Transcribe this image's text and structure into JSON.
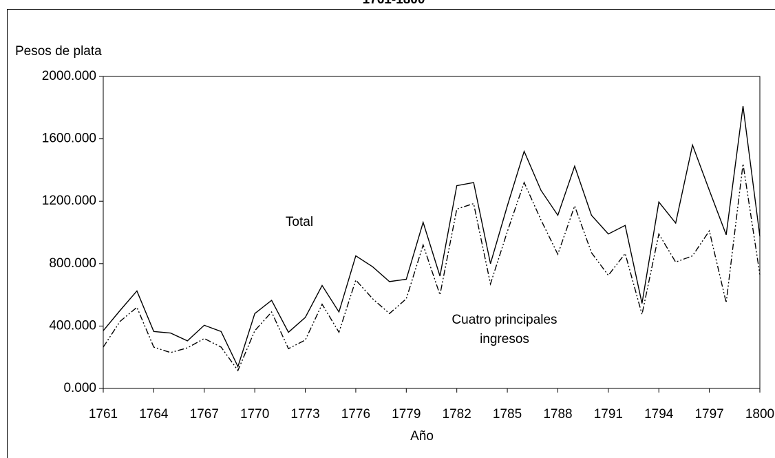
{
  "chart_data": {
    "type": "line",
    "title": "1761-1800",
    "y_label": "Pesos de plata",
    "x_label": "Año",
    "x": [
      1761,
      1762,
      1763,
      1764,
      1765,
      1766,
      1767,
      1768,
      1769,
      1770,
      1771,
      1772,
      1773,
      1774,
      1775,
      1776,
      1777,
      1778,
      1779,
      1780,
      1781,
      1782,
      1783,
      1784,
      1785,
      1786,
      1787,
      1788,
      1789,
      1790,
      1791,
      1792,
      1793,
      1794,
      1795,
      1796,
      1797,
      1798,
      1799,
      1800
    ],
    "series": [
      {
        "color": "#000000",
        "dash": "solid",
        "values": [
          370000,
          500000,
          625000,
          365000,
          355000,
          305000,
          405000,
          365000,
          140000,
          480000,
          565000,
          360000,
          455000,
          660000,
          490000,
          850000,
          780000,
          685000,
          700000,
          1065000,
          720000,
          1300000,
          1320000,
          800000,
          1170000,
          1520000,
          1270000,
          1110000,
          1425000,
          1110000,
          990000,
          1045000,
          545000,
          1195000,
          1060000,
          1560000,
          1270000,
          985000,
          1810000,
          975000
        ]
      },
      {
        "color": "#000000",
        "dash": "dashdot",
        "values": [
          265000,
          430000,
          520000,
          265000,
          230000,
          260000,
          320000,
          265000,
          115000,
          370000,
          490000,
          255000,
          310000,
          540000,
          360000,
          695000,
          575000,
          480000,
          575000,
          920000,
          600000,
          1150000,
          1185000,
          670000,
          1005000,
          1320000,
          1080000,
          860000,
          1170000,
          870000,
          725000,
          865000,
          475000,
          990000,
          810000,
          850000,
          1010000,
          550000,
          1440000,
          730000
        ]
      }
    ],
    "xlim": [
      1761,
      1800
    ],
    "xticks": [
      1761,
      1764,
      1767,
      1770,
      1773,
      1776,
      1779,
      1782,
      1785,
      1788,
      1791,
      1794,
      1797,
      1800
    ],
    "ylim": [
      0,
      2000000
    ],
    "yticks": [
      {
        "value": 0,
        "label": "0.000"
      },
      {
        "value": 400000,
        "label": "400.000"
      },
      {
        "value": 800000,
        "label": "800.000"
      },
      {
        "value": 1200000,
        "label": "1200.000"
      },
      {
        "value": 1600000,
        "label": "1600.000"
      },
      {
        "value": 2000000,
        "label": "2000.000"
      }
    ],
    "annotations": [
      {
        "text": "Total"
      },
      {
        "text": "Cuatro principales"
      },
      {
        "text": "ingresos"
      }
    ]
  }
}
